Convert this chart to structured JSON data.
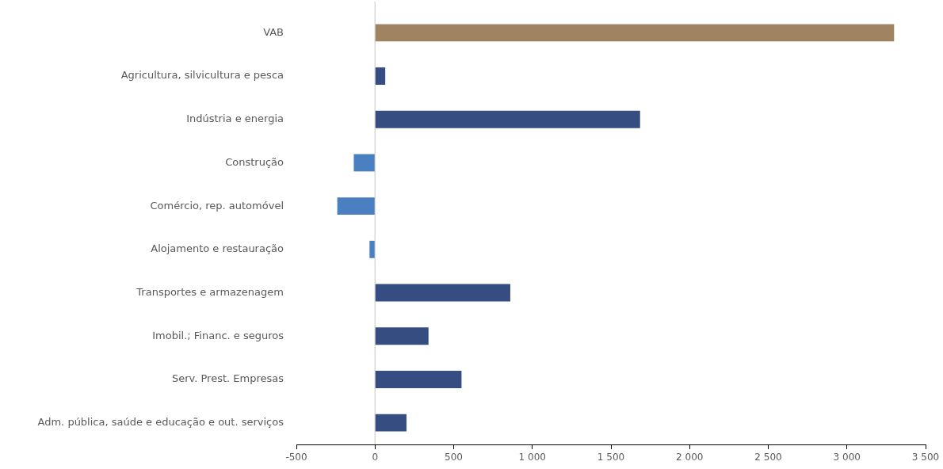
{
  "chart_data": {
    "type": "bar",
    "orientation": "horizontal",
    "categories": [
      "VAB",
      "Agricultura, silvicultura e pesca",
      "Indústria e energia",
      "Construção",
      "Comércio, rep. automóvel",
      "Alojamento e restauração",
      "Transportes e armazenagem",
      "Imobil.; Financ. e seguros",
      "Serv. Prest. Empresas",
      "Adm. pública, saúde e educação e out. serviços"
    ],
    "values": [
      3300,
      65,
      1685,
      -135,
      -240,
      -35,
      860,
      340,
      550,
      200
    ],
    "colors": [
      "#a08462",
      "#354d80",
      "#354d80",
      "#4a7fc1",
      "#4a7fc1",
      "#4a7fc1",
      "#354d80",
      "#354d80",
      "#354d80",
      "#354d80"
    ],
    "xlim": [
      -500,
      3500
    ],
    "xticks": [
      -500,
      0,
      500,
      {
        "value": 1000,
        "label": "1 000"
      },
      {
        "value": 1500,
        "label": "1 500"
      },
      {
        "value": 2000,
        "label": "2 000"
      },
      {
        "value": 2500,
        "label": "2 500"
      },
      {
        "value": 3000,
        "label": "3 000"
      },
      {
        "value": 3500,
        "label": "3 500"
      }
    ]
  }
}
